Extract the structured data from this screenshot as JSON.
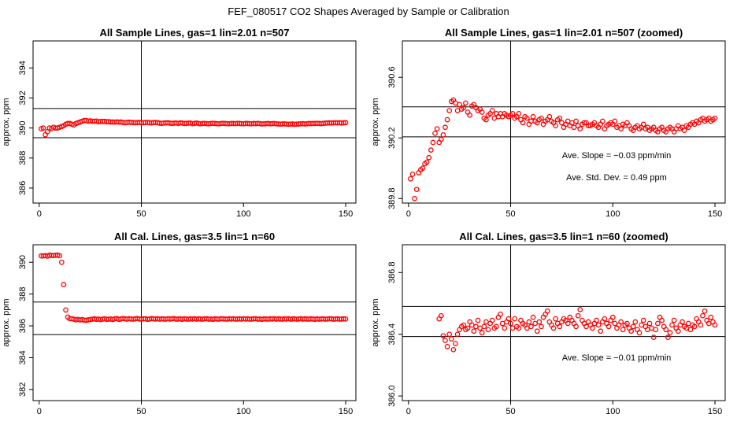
{
  "figure_title": "FEF_080517  CO2 Shapes Averaged by Sample or Calibration",
  "chart_data": [
    {
      "type": "scatter",
      "id": "p1",
      "title": "All Sample Lines, gas=1 lin=2.01 n=507",
      "xlabel": "",
      "ylabel": "approx. ppm",
      "xlim": [
        -3,
        155
      ],
      "ylim": [
        385,
        395.8
      ],
      "xticks": [
        0,
        50,
        100,
        150
      ],
      "xtick_labels": [
        "0",
        "50",
        "100",
        "150"
      ],
      "yticks": [
        386,
        388,
        390,
        392,
        394
      ],
      "ytick_labels": [
        "386",
        "388",
        "390",
        "392",
        "394"
      ],
      "hlines": [
        391.3,
        389.35
      ],
      "vline": 50,
      "annotations": [],
      "x": [
        1,
        2,
        3,
        4,
        5,
        6,
        7,
        8,
        9,
        10,
        11,
        12,
        13,
        14,
        15,
        16,
        17,
        18,
        19,
        20,
        21,
        22,
        23,
        24,
        25,
        26,
        27,
        28,
        29,
        30,
        31,
        32,
        33,
        34,
        35,
        36,
        37,
        38,
        39,
        40,
        41,
        42,
        43,
        44,
        45,
        46,
        47,
        48,
        49,
        50,
        51,
        52,
        53,
        54,
        55,
        56,
        57,
        58,
        59,
        60,
        61,
        62,
        63,
        64,
        65,
        66,
        67,
        68,
        69,
        70,
        71,
        72,
        73,
        74,
        75,
        76,
        77,
        78,
        79,
        80,
        81,
        82,
        83,
        84,
        85,
        86,
        87,
        88,
        89,
        90,
        91,
        92,
        93,
        94,
        95,
        96,
        97,
        98,
        99,
        100,
        101,
        102,
        103,
        104,
        105,
        106,
        107,
        108,
        109,
        110,
        111,
        112,
        113,
        114,
        115,
        116,
        117,
        118,
        119,
        120,
        121,
        122,
        123,
        124,
        125,
        126,
        127,
        128,
        129,
        130,
        131,
        132,
        133,
        134,
        135,
        136,
        137,
        138,
        139,
        140,
        141,
        142,
        143,
        144,
        145,
        146,
        147,
        148,
        149,
        150
      ],
      "y": [
        389.95,
        390.0,
        389.55,
        389.75,
        390.0,
        389.95,
        390.05,
        390.0,
        390.0,
        390.05,
        390.1,
        390.15,
        390.25,
        390.3,
        390.3,
        390.25,
        390.2,
        390.3,
        390.35,
        390.4,
        390.45,
        390.5,
        390.5,
        390.45,
        390.48,
        390.45,
        390.45,
        390.46,
        390.42,
        390.43,
        390.44,
        390.44,
        390.42,
        390.42,
        390.4,
        390.4,
        390.39,
        390.41,
        390.39,
        390.4,
        390.37,
        390.35,
        390.37,
        390.39,
        390.37,
        390.36,
        390.35,
        390.36,
        390.37,
        390.36,
        390.35,
        390.37,
        390.37,
        390.35,
        390.34,
        390.36,
        390.37,
        390.35,
        390.32,
        390.31,
        390.33,
        390.34,
        390.35,
        390.32,
        390.31,
        390.32,
        390.33,
        390.31,
        390.34,
        390.33,
        390.3,
        390.31,
        390.32,
        390.33,
        390.29,
        390.31,
        390.33,
        390.3,
        390.28,
        390.3,
        390.31,
        390.29,
        390.28,
        390.3,
        390.31,
        390.3,
        390.29,
        390.28,
        390.3,
        390.31,
        390.3,
        390.29,
        390.28,
        390.3,
        390.3,
        390.29,
        390.31,
        390.3,
        390.29,
        390.28,
        390.3,
        390.3,
        390.29,
        390.28,
        390.3,
        390.29,
        390.31,
        390.29,
        390.27,
        390.28,
        390.29,
        390.3,
        390.28,
        390.29,
        390.3,
        390.28,
        390.27,
        390.26,
        390.27,
        390.28,
        390.26,
        390.25,
        390.26,
        390.27,
        390.25,
        390.26,
        390.27,
        390.28,
        390.29,
        390.27,
        390.28,
        390.3,
        390.29,
        390.3,
        390.3,
        390.31,
        390.3,
        390.29,
        390.31,
        390.32,
        390.33,
        390.34,
        390.33,
        390.34,
        390.35,
        390.34,
        390.35,
        390.33,
        390.34,
        390.36
      ]
    },
    {
      "type": "scatter",
      "id": "p2",
      "title": "All Sample Lines, gas=1 lin=2.01 n=507 (zoomed)",
      "xlabel": "",
      "ylabel": "approx. ppm",
      "xlim": [
        -3,
        155
      ],
      "ylim": [
        389.77,
        390.84
      ],
      "xticks": [
        0,
        50,
        100,
        150
      ],
      "xtick_labels": [
        "0",
        "50",
        "100",
        "150"
      ],
      "yticks": [
        389.8,
        390.2,
        390.6
      ],
      "ytick_labels": [
        "389.8",
        "390.2",
        "390.6"
      ],
      "hlines": [
        390.405,
        390.207
      ],
      "vline": 50,
      "annotations": [
        "Ave. Slope = −0.03  ppm/min",
        "Ave. Std. Dev. =  0.49  ppm"
      ],
      "x": [
        1,
        2,
        3,
        4,
        5,
        6,
        7,
        8,
        9,
        10,
        11,
        12,
        13,
        14,
        15,
        16,
        17,
        18,
        19,
        20,
        21,
        22,
        23,
        24,
        25,
        26,
        27,
        28,
        29,
        30,
        31,
        32,
        33,
        34,
        35,
        36,
        37,
        38,
        39,
        40,
        41,
        42,
        43,
        44,
        45,
        46,
        47,
        48,
        49,
        50,
        51,
        52,
        53,
        54,
        55,
        56,
        57,
        58,
        59,
        60,
        61,
        62,
        63,
        64,
        65,
        66,
        67,
        68,
        69,
        70,
        71,
        72,
        73,
        74,
        75,
        76,
        77,
        78,
        79,
        80,
        81,
        82,
        83,
        84,
        85,
        86,
        87,
        88,
        89,
        90,
        91,
        92,
        93,
        94,
        95,
        96,
        97,
        98,
        99,
        100,
        101,
        102,
        103,
        104,
        105,
        106,
        107,
        108,
        109,
        110,
        111,
        112,
        113,
        114,
        115,
        116,
        117,
        118,
        119,
        120,
        121,
        122,
        123,
        124,
        125,
        126,
        127,
        128,
        129,
        130,
        131,
        132,
        133,
        134,
        135,
        136,
        137,
        138,
        139,
        140,
        141,
        142,
        143,
        144,
        145,
        146,
        147,
        148,
        149,
        150
      ],
      "y": [
        389.93,
        389.96,
        389.8,
        389.86,
        389.97,
        389.99,
        390.0,
        390.03,
        390.04,
        390.07,
        390.12,
        390.17,
        390.23,
        390.26,
        390.17,
        390.19,
        390.22,
        390.27,
        390.32,
        390.38,
        390.44,
        390.45,
        390.43,
        390.38,
        390.42,
        390.39,
        390.4,
        390.43,
        390.37,
        390.35,
        390.41,
        390.42,
        390.4,
        390.38,
        390.39,
        390.37,
        390.33,
        390.32,
        390.35,
        390.36,
        390.38,
        390.33,
        390.36,
        390.34,
        390.36,
        390.34,
        390.36,
        390.35,
        390.34,
        390.35,
        390.36,
        390.33,
        390.34,
        390.36,
        390.32,
        390.3,
        390.34,
        390.33,
        390.29,
        390.31,
        390.34,
        390.31,
        390.3,
        390.32,
        390.33,
        390.29,
        390.31,
        390.32,
        390.34,
        390.31,
        390.3,
        390.28,
        390.32,
        390.33,
        390.3,
        390.27,
        390.29,
        390.31,
        390.28,
        390.3,
        390.27,
        390.31,
        390.28,
        390.26,
        390.29,
        390.3,
        390.3,
        390.28,
        390.28,
        390.29,
        390.3,
        390.28,
        390.27,
        390.29,
        390.31,
        390.26,
        390.28,
        390.29,
        390.3,
        390.29,
        390.31,
        390.27,
        390.28,
        390.26,
        390.29,
        390.28,
        390.3,
        390.28,
        390.26,
        390.25,
        390.27,
        390.28,
        390.26,
        390.27,
        390.29,
        390.26,
        390.27,
        390.25,
        390.26,
        390.27,
        390.25,
        390.24,
        390.26,
        390.27,
        390.25,
        390.24,
        390.26,
        390.27,
        390.26,
        390.24,
        390.26,
        390.28,
        390.26,
        390.27,
        390.25,
        390.28,
        390.27,
        390.29,
        390.3,
        390.29,
        390.31,
        390.3,
        390.32,
        390.33,
        390.31,
        390.32,
        390.33,
        390.31,
        390.32,
        390.33
      ]
    },
    {
      "type": "scatter",
      "id": "p3",
      "title": "All Cal. Lines, gas=3.5 lin=1 n=60",
      "xlabel": "",
      "ylabel": "approx. ppm",
      "xlim": [
        -3,
        155
      ],
      "ylim": [
        381.3,
        391.1
      ],
      "xticks": [
        0,
        50,
        100,
        150
      ],
      "xtick_labels": [
        "0",
        "50",
        "100",
        "150"
      ],
      "yticks": [
        382,
        384,
        386,
        388,
        390
      ],
      "ytick_labels": [
        "382",
        "384",
        "386",
        "388",
        "390"
      ],
      "hlines": [
        387.5,
        385.45
      ],
      "vline": 50,
      "annotations": [],
      "x": [
        1,
        2,
        3,
        4,
        5,
        6,
        7,
        8,
        9,
        10,
        11,
        12,
        13,
        14,
        15,
        16,
        17,
        18,
        19,
        20,
        21,
        22,
        23,
        24,
        25,
        26,
        27,
        28,
        29,
        30,
        31,
        32,
        33,
        34,
        35,
        36,
        37,
        38,
        39,
        40,
        41,
        42,
        43,
        44,
        45,
        46,
        47,
        48,
        49,
        50,
        51,
        52,
        53,
        54,
        55,
        56,
        57,
        58,
        59,
        60,
        61,
        62,
        63,
        64,
        65,
        66,
        67,
        68,
        69,
        70,
        71,
        72,
        73,
        74,
        75,
        76,
        77,
        78,
        79,
        80,
        81,
        82,
        83,
        84,
        85,
        86,
        87,
        88,
        89,
        90,
        91,
        92,
        93,
        94,
        95,
        96,
        97,
        98,
        99,
        100,
        101,
        102,
        103,
        104,
        105,
        106,
        107,
        108,
        109,
        110,
        111,
        112,
        113,
        114,
        115,
        116,
        117,
        118,
        119,
        120,
        121,
        122,
        123,
        124,
        125,
        126,
        127,
        128,
        129,
        130,
        131,
        132,
        133,
        134,
        135,
        136,
        137,
        138,
        139,
        140,
        141,
        142,
        143,
        144,
        145,
        146,
        147,
        148,
        149,
        150
      ],
      "y": [
        390.4,
        390.4,
        390.42,
        390.38,
        390.45,
        390.43,
        390.42,
        390.44,
        390.45,
        390.41,
        390.0,
        388.6,
        387.0,
        386.55,
        386.45,
        386.45,
        386.42,
        386.38,
        386.41,
        386.37,
        386.4,
        386.36,
        386.35,
        386.38,
        386.4,
        386.42,
        386.44,
        386.41,
        386.43,
        386.39,
        386.42,
        386.45,
        386.41,
        386.42,
        386.43,
        386.4,
        386.44,
        386.46,
        386.41,
        386.43,
        386.47,
        386.44,
        386.42,
        386.45,
        386.43,
        386.42,
        386.44,
        386.47,
        386.43,
        386.42,
        386.44,
        386.45,
        386.41,
        386.43,
        386.46,
        386.44,
        386.43,
        386.45,
        386.42,
        386.44,
        386.43,
        386.42,
        386.45,
        386.43,
        386.44,
        386.46,
        386.42,
        386.43,
        386.44,
        386.41,
        386.45,
        386.43,
        386.42,
        386.44,
        386.43,
        386.45,
        386.42,
        386.44,
        386.43,
        386.42,
        386.44,
        386.45,
        386.42,
        386.43,
        386.41,
        386.44,
        386.43,
        386.42,
        386.45,
        386.44,
        386.43,
        386.42,
        386.44,
        386.43,
        386.45,
        386.42,
        386.43,
        386.44,
        386.42,
        386.45,
        386.43,
        386.44,
        386.42,
        386.43,
        386.44,
        386.45,
        386.42,
        386.43,
        386.41,
        386.44,
        386.43,
        386.42,
        386.44,
        386.43,
        386.45,
        386.42,
        386.44,
        386.43,
        386.42,
        386.44,
        386.43,
        386.45,
        386.42,
        386.43,
        386.44,
        386.42,
        386.43,
        386.45,
        386.42,
        386.44,
        386.43,
        386.42,
        386.44,
        386.43,
        386.41,
        386.44,
        386.42,
        386.43,
        386.44,
        386.42,
        386.43,
        386.45,
        386.44,
        386.42,
        386.43,
        386.44,
        386.42,
        386.43,
        386.44,
        386.43
      ]
    },
    {
      "type": "scatter",
      "id": "p4",
      "title": "All Cal. Lines, gas=3.5 lin=1 n=60 (zoomed)",
      "xlabel": "",
      "ylabel": "approx. ppm",
      "xlim": [
        -3,
        155
      ],
      "ylim": [
        385.97,
        386.98
      ],
      "xticks": [
        0,
        50,
        100,
        150
      ],
      "xtick_labels": [
        "0",
        "50",
        "100",
        "150"
      ],
      "yticks": [
        386.0,
        386.4,
        386.8
      ],
      "ytick_labels": [
        "386.0",
        "386.4",
        "386.8"
      ],
      "hlines": [
        386.58,
        386.385
      ],
      "vline": 50,
      "annotations": [
        "Ave. Slope = −0.01  ppm/min"
      ],
      "x": [
        15,
        16,
        17,
        18,
        19,
        20,
        21,
        22,
        23,
        24,
        25,
        26,
        27,
        28,
        29,
        30,
        31,
        32,
        33,
        34,
        35,
        36,
        37,
        38,
        39,
        40,
        41,
        42,
        43,
        44,
        45,
        46,
        47,
        48,
        49,
        50,
        51,
        52,
        53,
        54,
        55,
        56,
        57,
        58,
        59,
        60,
        61,
        62,
        63,
        64,
        65,
        66,
        67,
        68,
        69,
        70,
        71,
        72,
        73,
        74,
        75,
        76,
        77,
        78,
        79,
        80,
        81,
        82,
        83,
        84,
        85,
        86,
        87,
        88,
        89,
        90,
        91,
        92,
        93,
        94,
        95,
        96,
        97,
        98,
        99,
        100,
        101,
        102,
        103,
        104,
        105,
        106,
        107,
        108,
        109,
        110,
        111,
        112,
        113,
        114,
        115,
        116,
        117,
        118,
        119,
        120,
        121,
        122,
        123,
        124,
        125,
        126,
        127,
        128,
        129,
        130,
        131,
        132,
        133,
        134,
        135,
        136,
        137,
        138,
        139,
        140,
        141,
        142,
        143,
        144,
        145,
        146,
        147,
        148,
        149,
        150
      ],
      "y": [
        386.5,
        386.52,
        386.39,
        386.36,
        386.32,
        386.4,
        386.37,
        386.3,
        386.34,
        386.4,
        386.43,
        386.45,
        386.46,
        386.43,
        386.44,
        386.48,
        386.46,
        386.42,
        386.45,
        386.49,
        386.44,
        386.41,
        386.45,
        386.48,
        386.43,
        386.47,
        386.49,
        386.44,
        386.45,
        386.51,
        386.53,
        386.47,
        386.44,
        386.48,
        386.5,
        386.47,
        386.44,
        386.5,
        386.45,
        386.44,
        386.49,
        386.47,
        386.46,
        386.44,
        386.48,
        386.45,
        386.51,
        386.47,
        386.42,
        386.48,
        386.45,
        386.51,
        386.53,
        386.55,
        386.48,
        386.46,
        386.44,
        386.5,
        386.47,
        386.45,
        386.48,
        386.5,
        386.49,
        386.47,
        386.51,
        386.49,
        386.47,
        386.45,
        386.52,
        386.56,
        386.49,
        386.47,
        386.45,
        386.48,
        386.46,
        386.44,
        386.47,
        386.49,
        386.46,
        386.42,
        386.48,
        386.5,
        386.47,
        386.45,
        386.49,
        386.51,
        386.47,
        386.44,
        386.46,
        386.48,
        386.43,
        386.46,
        386.47,
        386.44,
        386.42,
        386.45,
        386.48,
        386.43,
        386.41,
        386.46,
        386.49,
        386.45,
        386.43,
        386.47,
        386.44,
        386.38,
        386.43,
        386.47,
        386.51,
        386.49,
        386.45,
        386.43,
        386.38,
        386.41,
        386.46,
        386.49,
        386.44,
        386.42,
        386.46,
        386.48,
        386.45,
        386.44,
        386.47,
        386.43,
        386.46,
        386.45,
        386.5,
        386.48,
        386.46,
        386.52,
        386.55,
        386.49,
        386.47,
        386.51,
        386.48,
        386.46
      ]
    }
  ]
}
